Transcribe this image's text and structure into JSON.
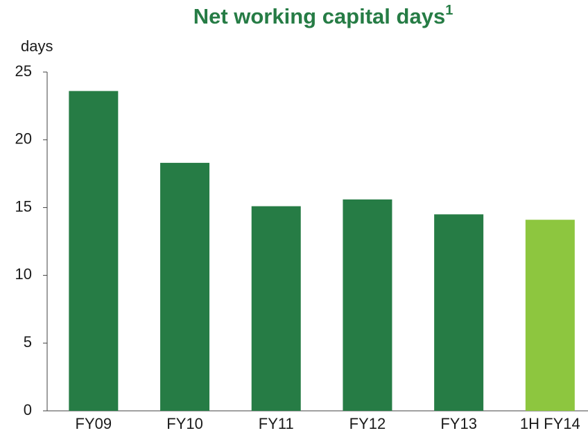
{
  "chart_data": {
    "type": "bar",
    "title": "Net working capital days",
    "title_footnote": "1",
    "y_label": "days",
    "categories": [
      "FY09",
      "FY10",
      "FY11",
      "FY12",
      "FY13",
      "1H FY14"
    ],
    "values": [
      23.6,
      18.3,
      15.1,
      15.6,
      14.5,
      14.1
    ],
    "colors": [
      "#267c45",
      "#267c45",
      "#267c45",
      "#267c45",
      "#267c45",
      "#8dc63f"
    ],
    "ylim": [
      0,
      25
    ],
    "yticks": [
      0,
      5,
      10,
      15,
      20,
      25
    ],
    "grid": false
  }
}
